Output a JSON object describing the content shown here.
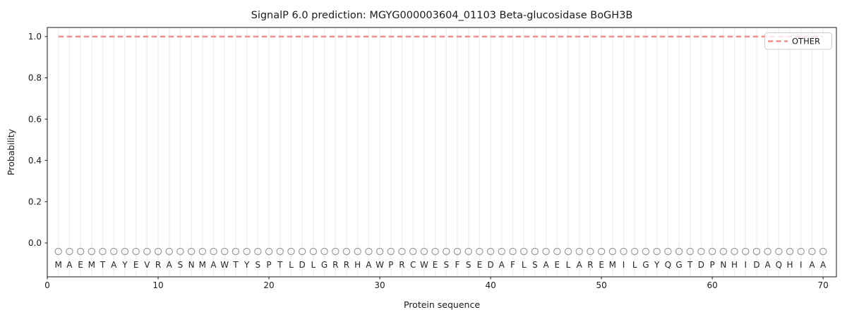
{
  "chart_data": {
    "type": "line",
    "title": "SignalP 6.0 prediction: MGYG000003604_01103 Beta-glucosidase BoGH3B",
    "xlabel": "Protein sequence",
    "ylabel": "Probability",
    "xlim": [
      0,
      71.2
    ],
    "ylim": [
      -0.164,
      1.044
    ],
    "x_ticks": [
      "0",
      "10",
      "20",
      "30",
      "40",
      "50",
      "60",
      "70"
    ],
    "y_ticks": [
      "0.0",
      "0.2",
      "0.4",
      "0.6",
      "0.8",
      "1.0"
    ],
    "grid": "vertical-gridline-per-residue",
    "legend_position": "upper right",
    "series": [
      {
        "name": "OTHER",
        "style": "dashed",
        "x_from": 1,
        "x_to": 70,
        "values": [
          1.0,
          1.0,
          1.0,
          1.0,
          1.0,
          1.0,
          1.0,
          1.0,
          1.0,
          1.0,
          1.0,
          1.0,
          1.0,
          1.0,
          1.0,
          1.0,
          1.0,
          1.0,
          1.0,
          1.0,
          1.0,
          1.0,
          1.0,
          1.0,
          1.0,
          1.0,
          1.0,
          1.0,
          1.0,
          1.0,
          1.0,
          1.0,
          1.0,
          1.0,
          1.0,
          1.0,
          1.0,
          1.0,
          1.0,
          1.0,
          1.0,
          1.0,
          1.0,
          1.0,
          1.0,
          1.0,
          1.0,
          1.0,
          1.0,
          1.0,
          1.0,
          1.0,
          1.0,
          1.0,
          1.0,
          1.0,
          1.0,
          1.0,
          1.0,
          1.0,
          1.0,
          1.0,
          1.0,
          1.0,
          1.0,
          1.0,
          1.0,
          1.0,
          1.0,
          1.0
        ]
      }
    ],
    "sequence": [
      "M",
      "A",
      "E",
      "M",
      "T",
      "A",
      "Y",
      "E",
      "V",
      "R",
      "A",
      "S",
      "N",
      "M",
      "A",
      "W",
      "T",
      "Y",
      "S",
      "P",
      "T",
      "L",
      "D",
      "L",
      "G",
      "R",
      "R",
      "H",
      "A",
      "W",
      "P",
      "R",
      "C",
      "W",
      "E",
      "S",
      "F",
      "S",
      "E",
      "D",
      "A",
      "F",
      "L",
      "S",
      "A",
      "E",
      "L",
      "A",
      "R",
      "E",
      "M",
      "I",
      "L",
      "G",
      "Y",
      "Q",
      "G",
      "T",
      "D",
      "P",
      "N",
      "H",
      "I",
      "D",
      "A",
      "Q",
      "H",
      "I",
      "A",
      "A"
    ],
    "marker_value": -0.041,
    "colors": {
      "other_line": "#f28e8e",
      "grid": "#f0f0f0",
      "marker_outline": "#9a9a9a",
      "spine": "#1a1a1a",
      "text": "#1a1a1a",
      "legend_border": "#cccccc",
      "background": "#ffffff"
    }
  }
}
